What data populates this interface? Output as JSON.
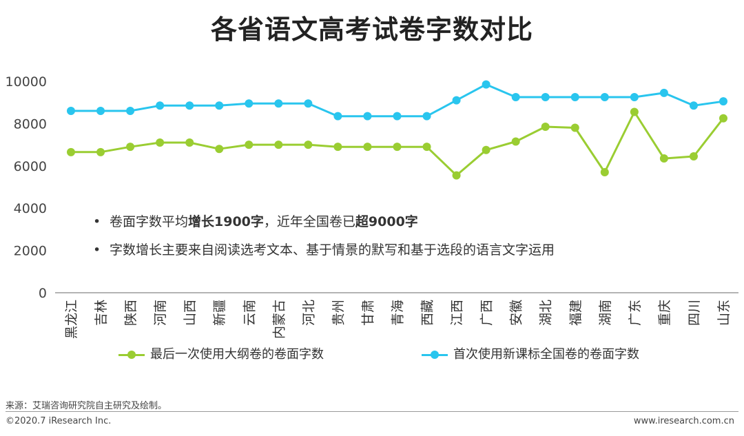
{
  "title": "各省语文高考试卷字数对比",
  "notes": [
    {
      "bullet": "•",
      "prefix": "卷面字数平均",
      "bold1": "增长1900字",
      "middle": "，近年全国卷已",
      "bold2": "超9000字"
    },
    {
      "bullet": "•",
      "text": "字数增长主要来自阅读选考文本、基于情景的默写和基于选段的语言文字运用"
    }
  ],
  "legend": [
    {
      "label": "最后一次使用大纲卷的卷面字数",
      "color": "#9ACD32"
    },
    {
      "label": "首次使用新课标全国卷的卷面字数",
      "color": "#29C5EE"
    }
  ],
  "source": "来源：艾瑞咨询研究院自主研究及绘制。",
  "footer": {
    "copyright": "©2020.7 iResearch Inc.",
    "website": "www.iresearch.com.cn"
  },
  "chart_data": {
    "type": "line",
    "categories": [
      "黑龙江",
      "吉林",
      "陕西",
      "河南",
      "山西",
      "新疆",
      "云南",
      "内蒙古",
      "河北",
      "贵州",
      "甘肃",
      "青海",
      "西藏",
      "江西",
      "广西",
      "安徽",
      "湖北",
      "福建",
      "湖南",
      "广东",
      "重庆",
      "四川",
      "山东"
    ],
    "series": [
      {
        "name": "最后一次使用大纲卷的卷面字数",
        "color": "#9ACD32",
        "values": [
          6650,
          6650,
          6900,
          7100,
          7100,
          6800,
          7000,
          7000,
          7000,
          6900,
          6900,
          6900,
          6900,
          5550,
          6750,
          7150,
          7850,
          7800,
          5700,
          8550,
          6350,
          6450,
          8250
        ]
      },
      {
        "name": "首次使用新课标全国卷的卷面字数",
        "color": "#29C5EE",
        "values": [
          8600,
          8600,
          8600,
          8850,
          8850,
          8850,
          8950,
          8950,
          8950,
          8350,
          8350,
          8350,
          8350,
          9100,
          9850,
          9250,
          9250,
          9250,
          9250,
          9250,
          9450,
          8850,
          9050
        ]
      }
    ],
    "yticks": [
      0,
      2000,
      4000,
      6000,
      8000,
      10000
    ],
    "ylim": [
      0,
      10000
    ],
    "grid": false,
    "legend_position": "bottom"
  }
}
